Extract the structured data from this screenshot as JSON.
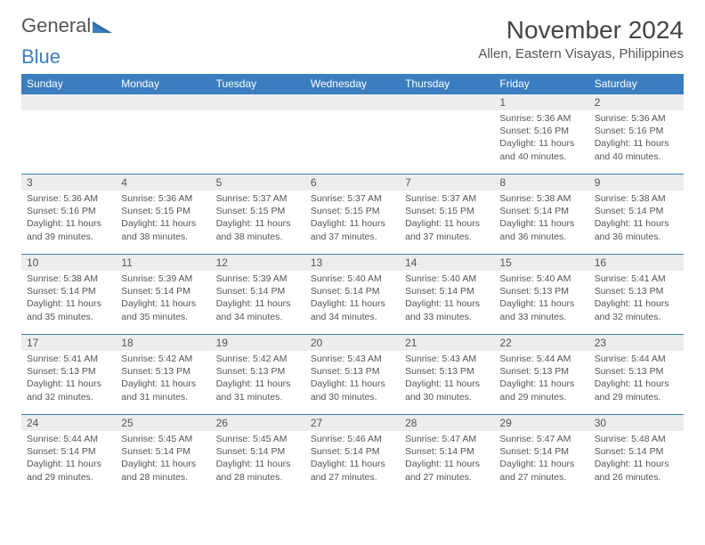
{
  "brand": {
    "part1": "General",
    "part2": "Blue"
  },
  "title": "November 2024",
  "subtitle": "Allen, Eastern Visayas, Philippines",
  "colors": {
    "accent": "#3b7ec0",
    "headerText": "#ffffff",
    "dayHeaderBg": "#eceded",
    "bodyText": "#555555",
    "background": "#ffffff"
  },
  "dayNames": [
    "Sunday",
    "Monday",
    "Tuesday",
    "Wednesday",
    "Thursday",
    "Friday",
    "Saturday"
  ],
  "weeks": [
    [
      {
        "n": "",
        "lines": []
      },
      {
        "n": "",
        "lines": []
      },
      {
        "n": "",
        "lines": []
      },
      {
        "n": "",
        "lines": []
      },
      {
        "n": "",
        "lines": []
      },
      {
        "n": "1",
        "lines": [
          "Sunrise: 5:36 AM",
          "Sunset: 5:16 PM",
          "Daylight: 11 hours and 40 minutes."
        ]
      },
      {
        "n": "2",
        "lines": [
          "Sunrise: 5:36 AM",
          "Sunset: 5:16 PM",
          "Daylight: 11 hours and 40 minutes."
        ]
      }
    ],
    [
      {
        "n": "3",
        "lines": [
          "Sunrise: 5:36 AM",
          "Sunset: 5:16 PM",
          "Daylight: 11 hours and 39 minutes."
        ]
      },
      {
        "n": "4",
        "lines": [
          "Sunrise: 5:36 AM",
          "Sunset: 5:15 PM",
          "Daylight: 11 hours and 38 minutes."
        ]
      },
      {
        "n": "5",
        "lines": [
          "Sunrise: 5:37 AM",
          "Sunset: 5:15 PM",
          "Daylight: 11 hours and 38 minutes."
        ]
      },
      {
        "n": "6",
        "lines": [
          "Sunrise: 5:37 AM",
          "Sunset: 5:15 PM",
          "Daylight: 11 hours and 37 minutes."
        ]
      },
      {
        "n": "7",
        "lines": [
          "Sunrise: 5:37 AM",
          "Sunset: 5:15 PM",
          "Daylight: 11 hours and 37 minutes."
        ]
      },
      {
        "n": "8",
        "lines": [
          "Sunrise: 5:38 AM",
          "Sunset: 5:14 PM",
          "Daylight: 11 hours and 36 minutes."
        ]
      },
      {
        "n": "9",
        "lines": [
          "Sunrise: 5:38 AM",
          "Sunset: 5:14 PM",
          "Daylight: 11 hours and 36 minutes."
        ]
      }
    ],
    [
      {
        "n": "10",
        "lines": [
          "Sunrise: 5:38 AM",
          "Sunset: 5:14 PM",
          "Daylight: 11 hours and 35 minutes."
        ]
      },
      {
        "n": "11",
        "lines": [
          "Sunrise: 5:39 AM",
          "Sunset: 5:14 PM",
          "Daylight: 11 hours and 35 minutes."
        ]
      },
      {
        "n": "12",
        "lines": [
          "Sunrise: 5:39 AM",
          "Sunset: 5:14 PM",
          "Daylight: 11 hours and 34 minutes."
        ]
      },
      {
        "n": "13",
        "lines": [
          "Sunrise: 5:40 AM",
          "Sunset: 5:14 PM",
          "Daylight: 11 hours and 34 minutes."
        ]
      },
      {
        "n": "14",
        "lines": [
          "Sunrise: 5:40 AM",
          "Sunset: 5:14 PM",
          "Daylight: 11 hours and 33 minutes."
        ]
      },
      {
        "n": "15",
        "lines": [
          "Sunrise: 5:40 AM",
          "Sunset: 5:13 PM",
          "Daylight: 11 hours and 33 minutes."
        ]
      },
      {
        "n": "16",
        "lines": [
          "Sunrise: 5:41 AM",
          "Sunset: 5:13 PM",
          "Daylight: 11 hours and 32 minutes."
        ]
      }
    ],
    [
      {
        "n": "17",
        "lines": [
          "Sunrise: 5:41 AM",
          "Sunset: 5:13 PM",
          "Daylight: 11 hours and 32 minutes."
        ]
      },
      {
        "n": "18",
        "lines": [
          "Sunrise: 5:42 AM",
          "Sunset: 5:13 PM",
          "Daylight: 11 hours and 31 minutes."
        ]
      },
      {
        "n": "19",
        "lines": [
          "Sunrise: 5:42 AM",
          "Sunset: 5:13 PM",
          "Daylight: 11 hours and 31 minutes."
        ]
      },
      {
        "n": "20",
        "lines": [
          "Sunrise: 5:43 AM",
          "Sunset: 5:13 PM",
          "Daylight: 11 hours and 30 minutes."
        ]
      },
      {
        "n": "21",
        "lines": [
          "Sunrise: 5:43 AM",
          "Sunset: 5:13 PM",
          "Daylight: 11 hours and 30 minutes."
        ]
      },
      {
        "n": "22",
        "lines": [
          "Sunrise: 5:44 AM",
          "Sunset: 5:13 PM",
          "Daylight: 11 hours and 29 minutes."
        ]
      },
      {
        "n": "23",
        "lines": [
          "Sunrise: 5:44 AM",
          "Sunset: 5:13 PM",
          "Daylight: 11 hours and 29 minutes."
        ]
      }
    ],
    [
      {
        "n": "24",
        "lines": [
          "Sunrise: 5:44 AM",
          "Sunset: 5:14 PM",
          "Daylight: 11 hours and 29 minutes."
        ]
      },
      {
        "n": "25",
        "lines": [
          "Sunrise: 5:45 AM",
          "Sunset: 5:14 PM",
          "Daylight: 11 hours and 28 minutes."
        ]
      },
      {
        "n": "26",
        "lines": [
          "Sunrise: 5:45 AM",
          "Sunset: 5:14 PM",
          "Daylight: 11 hours and 28 minutes."
        ]
      },
      {
        "n": "27",
        "lines": [
          "Sunrise: 5:46 AM",
          "Sunset: 5:14 PM",
          "Daylight: 11 hours and 27 minutes."
        ]
      },
      {
        "n": "28",
        "lines": [
          "Sunrise: 5:47 AM",
          "Sunset: 5:14 PM",
          "Daylight: 11 hours and 27 minutes."
        ]
      },
      {
        "n": "29",
        "lines": [
          "Sunrise: 5:47 AM",
          "Sunset: 5:14 PM",
          "Daylight: 11 hours and 27 minutes."
        ]
      },
      {
        "n": "30",
        "lines": [
          "Sunrise: 5:48 AM",
          "Sunset: 5:14 PM",
          "Daylight: 11 hours and 26 minutes."
        ]
      }
    ]
  ]
}
